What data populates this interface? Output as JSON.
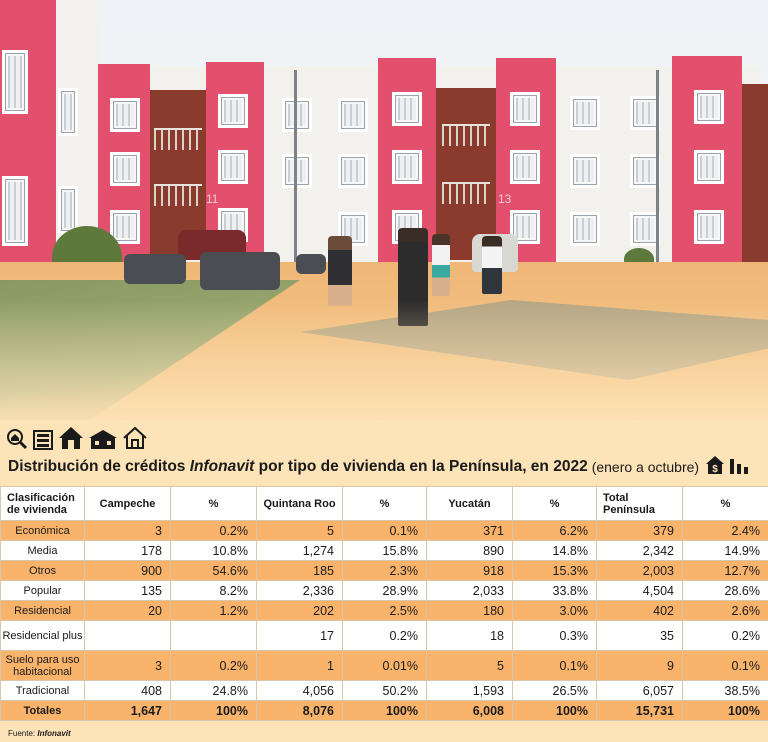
{
  "header": {
    "title_prefix": "Distribución de créditos ",
    "title_brand": "Infonavit",
    "title_suffix": " por tipo de vivienda en la Península, en 2022",
    "title_note": "(enero a octubre)",
    "icons": [
      "magnifier-house-icon",
      "building-icon",
      "house-icon",
      "barn-house-icon",
      "house-outline-icon"
    ],
    "title_icons": [
      "money-house-icon",
      "bar-chart-icon"
    ]
  },
  "photo": {
    "description_icons": [
      "housing-complex-photo"
    ],
    "building_numbers": [
      "11",
      "13"
    ]
  },
  "table": {
    "columns": [
      "Clasificación de vivienda",
      "Campeche",
      "%",
      "Quintana Roo",
      "%",
      "Yucatán",
      "%",
      "Total Península",
      "%"
    ],
    "rows": [
      {
        "label": "Económica",
        "highlight": true,
        "cells": [
          "3",
          "0.2%",
          "5",
          "0.1%",
          "371",
          "6.2%",
          "379",
          "2.4%"
        ]
      },
      {
        "label": "Media",
        "highlight": false,
        "cells": [
          "178",
          "10.8%",
          "1,274",
          "15.8%",
          "890",
          "14.8%",
          "2,342",
          "14.9%"
        ]
      },
      {
        "label": "Otros",
        "highlight": true,
        "cells": [
          "900",
          "54.6%",
          "185",
          "2.3%",
          "918",
          "15.3%",
          "2,003",
          "12.7%"
        ]
      },
      {
        "label": "Popular",
        "highlight": false,
        "cells": [
          "135",
          "8.2%",
          "2,336",
          "28.9%",
          "2,033",
          "33.8%",
          "4,504",
          "28.6%"
        ]
      },
      {
        "label": "Residencial",
        "highlight": true,
        "cells": [
          "20",
          "1.2%",
          "202",
          "2.5%",
          "180",
          "3.0%",
          "402",
          "2.6%"
        ]
      },
      {
        "label": "Residencial plus",
        "highlight": false,
        "cells": [
          "",
          "",
          "17",
          "0.2%",
          "18",
          "0.3%",
          "35",
          "0.2%"
        ]
      },
      {
        "label": "Suelo para uso habitacional",
        "highlight": true,
        "cells": [
          "3",
          "0.2%",
          "1",
          "0.01%",
          "5",
          "0.1%",
          "9",
          "0.1%"
        ]
      },
      {
        "label": "Tradicional",
        "highlight": false,
        "cells": [
          "408",
          "24.8%",
          "4,056",
          "50.2%",
          "1,593",
          "26.5%",
          "6,057",
          "38.5%"
        ]
      }
    ],
    "totals": {
      "label": "Totales",
      "cells": [
        "1,647",
        "100%",
        "8,076",
        "100%",
        "6,008",
        "100%",
        "15,731",
        "100%"
      ]
    }
  },
  "source": {
    "prefix": "Fuente: ",
    "name": "Infonavit"
  },
  "colors": {
    "highlight": "#f9b36b",
    "background": "#fde3b8",
    "border": "#d8c7ac"
  }
}
